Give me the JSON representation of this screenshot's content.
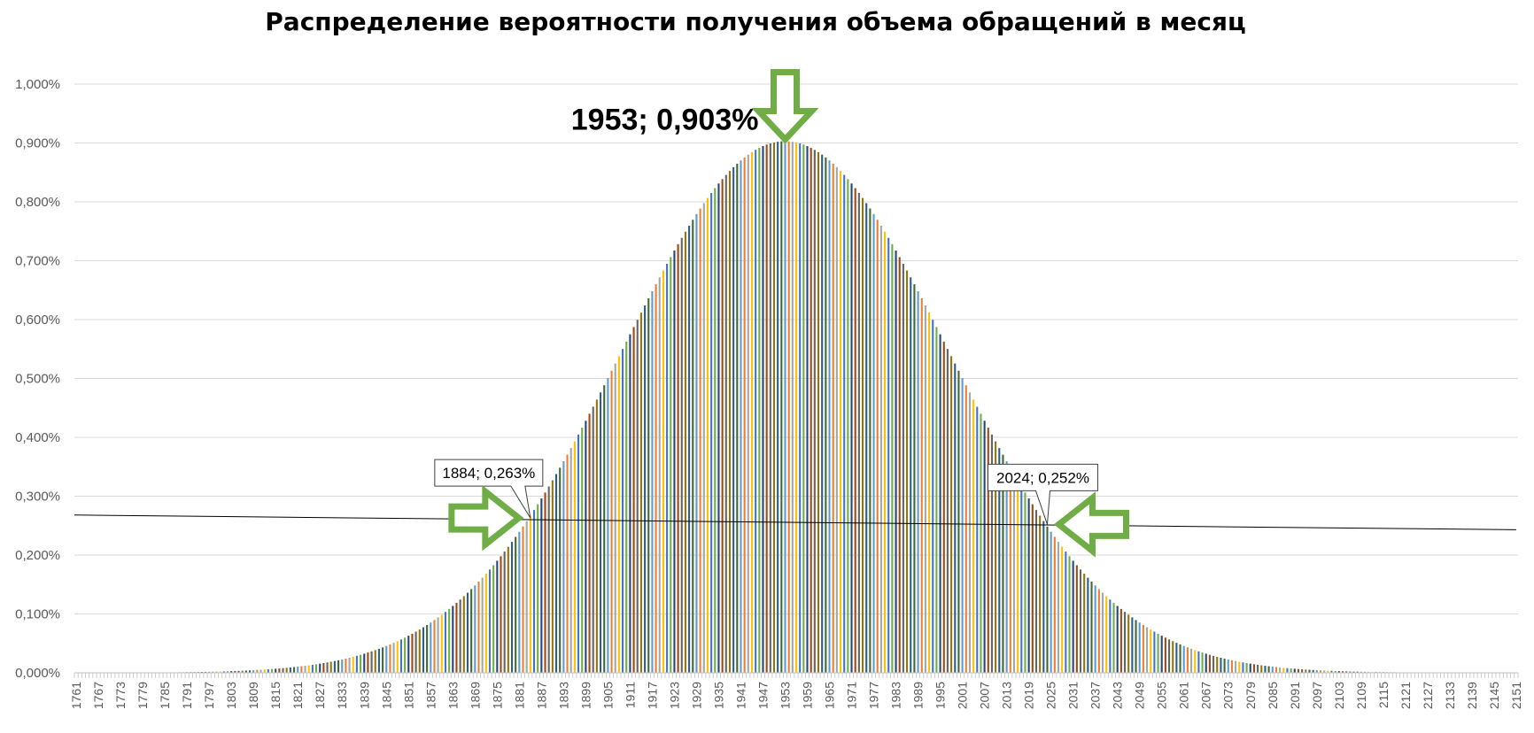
{
  "chart_data": {
    "type": "bar",
    "title": "Распределение вероятности получения объема обращений в месяц",
    "xlabel": "",
    "ylabel": "",
    "x_range": [
      1761,
      2151
    ],
    "x_tick_start": 1761,
    "x_tick_step": 6,
    "ylim": [
      0,
      1.0
    ],
    "y_ticks": [
      "0,000%",
      "0,100%",
      "0,200%",
      "0,300%",
      "0,400%",
      "0,500%",
      "0,600%",
      "0,700%",
      "0,800%",
      "0,900%",
      "1,000%"
    ],
    "distribution": {
      "shape": "normal",
      "peak_x": 1953,
      "peak_y_percent": 0.903,
      "sigma": 44.2
    },
    "bar_colors": [
      "#5b9bd5",
      "#ed7d31",
      "#a5a5a5",
      "#ffc000",
      "#4472c4",
      "#70ad47",
      "#264478",
      "#9e480e",
      "#636363",
      "#997300",
      "#255e91",
      "#43682b"
    ],
    "threshold_line": {
      "start": [
        1761,
        0.268
      ],
      "end": [
        2151,
        0.243
      ]
    },
    "grid": true,
    "legend": "none",
    "annotations": {
      "peak": {
        "x": 1953,
        "y": 0.903,
        "label": "1953; 0,903%"
      },
      "left": {
        "x": 1884,
        "y": 0.263,
        "label": "1884; 0,263%"
      },
      "right": {
        "x": 2024,
        "y": 0.252,
        "label": "2024; 0,252%"
      }
    },
    "arrow_color": "#70ad47"
  }
}
